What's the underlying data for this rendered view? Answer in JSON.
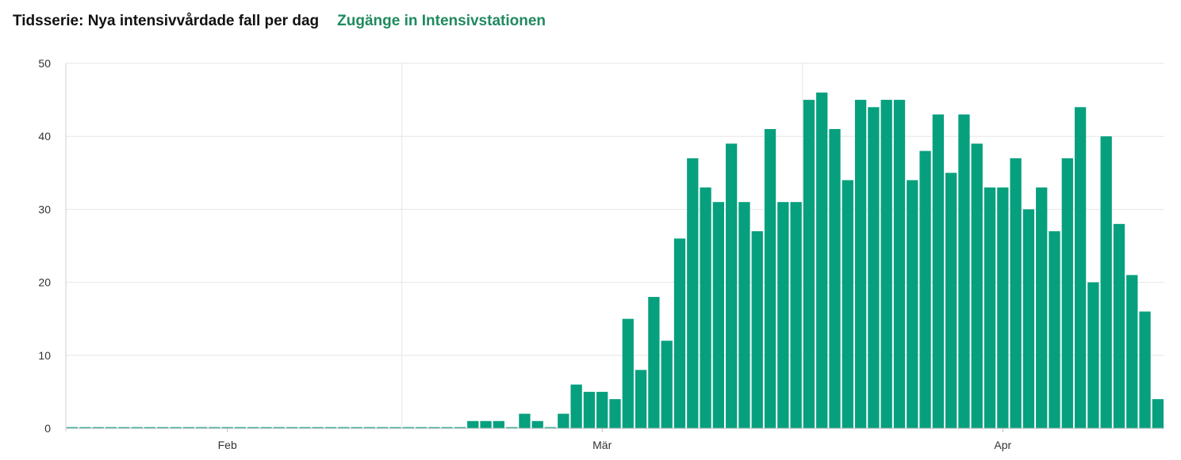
{
  "header": {
    "title": "Tidsserie: Nya intensivvårdade fall per dag",
    "subtitle": "Zugänge in Intensivstationen"
  },
  "colors": {
    "bar": "#07a07e",
    "subtitle": "#1f8a5f",
    "grid": "#e6e6e6"
  },
  "chart_data": {
    "type": "bar",
    "title": "Tidsserie: Nya intensivvårdade fall per dag",
    "subtitle": "Zugänge in Intensivstationen",
    "xlabel": "",
    "ylabel": "",
    "ylim": [
      0,
      50
    ],
    "yticks": [
      0,
      10,
      20,
      30,
      40,
      50
    ],
    "xticks": [
      {
        "label": "Feb",
        "index": 12
      },
      {
        "label": "Mär",
        "index": 41
      },
      {
        "label": "Apr",
        "index": 72
      }
    ],
    "grid": true,
    "legend": "none",
    "values": [
      0,
      0,
      0,
      0,
      0,
      0,
      0,
      0,
      0,
      0,
      0,
      0,
      0,
      0,
      0,
      0,
      0,
      0,
      0,
      0,
      0,
      0,
      0,
      0,
      0,
      0,
      0,
      0,
      0,
      0,
      0,
      1,
      1,
      1,
      0,
      2,
      1,
      0,
      2,
      6,
      5,
      5,
      4,
      15,
      8,
      18,
      12,
      26,
      37,
      33,
      31,
      39,
      31,
      27,
      41,
      31,
      31,
      45,
      46,
      41,
      34,
      45,
      44,
      45,
      45,
      34,
      38,
      43,
      35,
      43,
      39,
      33,
      33,
      37,
      30,
      33,
      27,
      37,
      44,
      20,
      40,
      28,
      21,
      16,
      4
    ]
  }
}
